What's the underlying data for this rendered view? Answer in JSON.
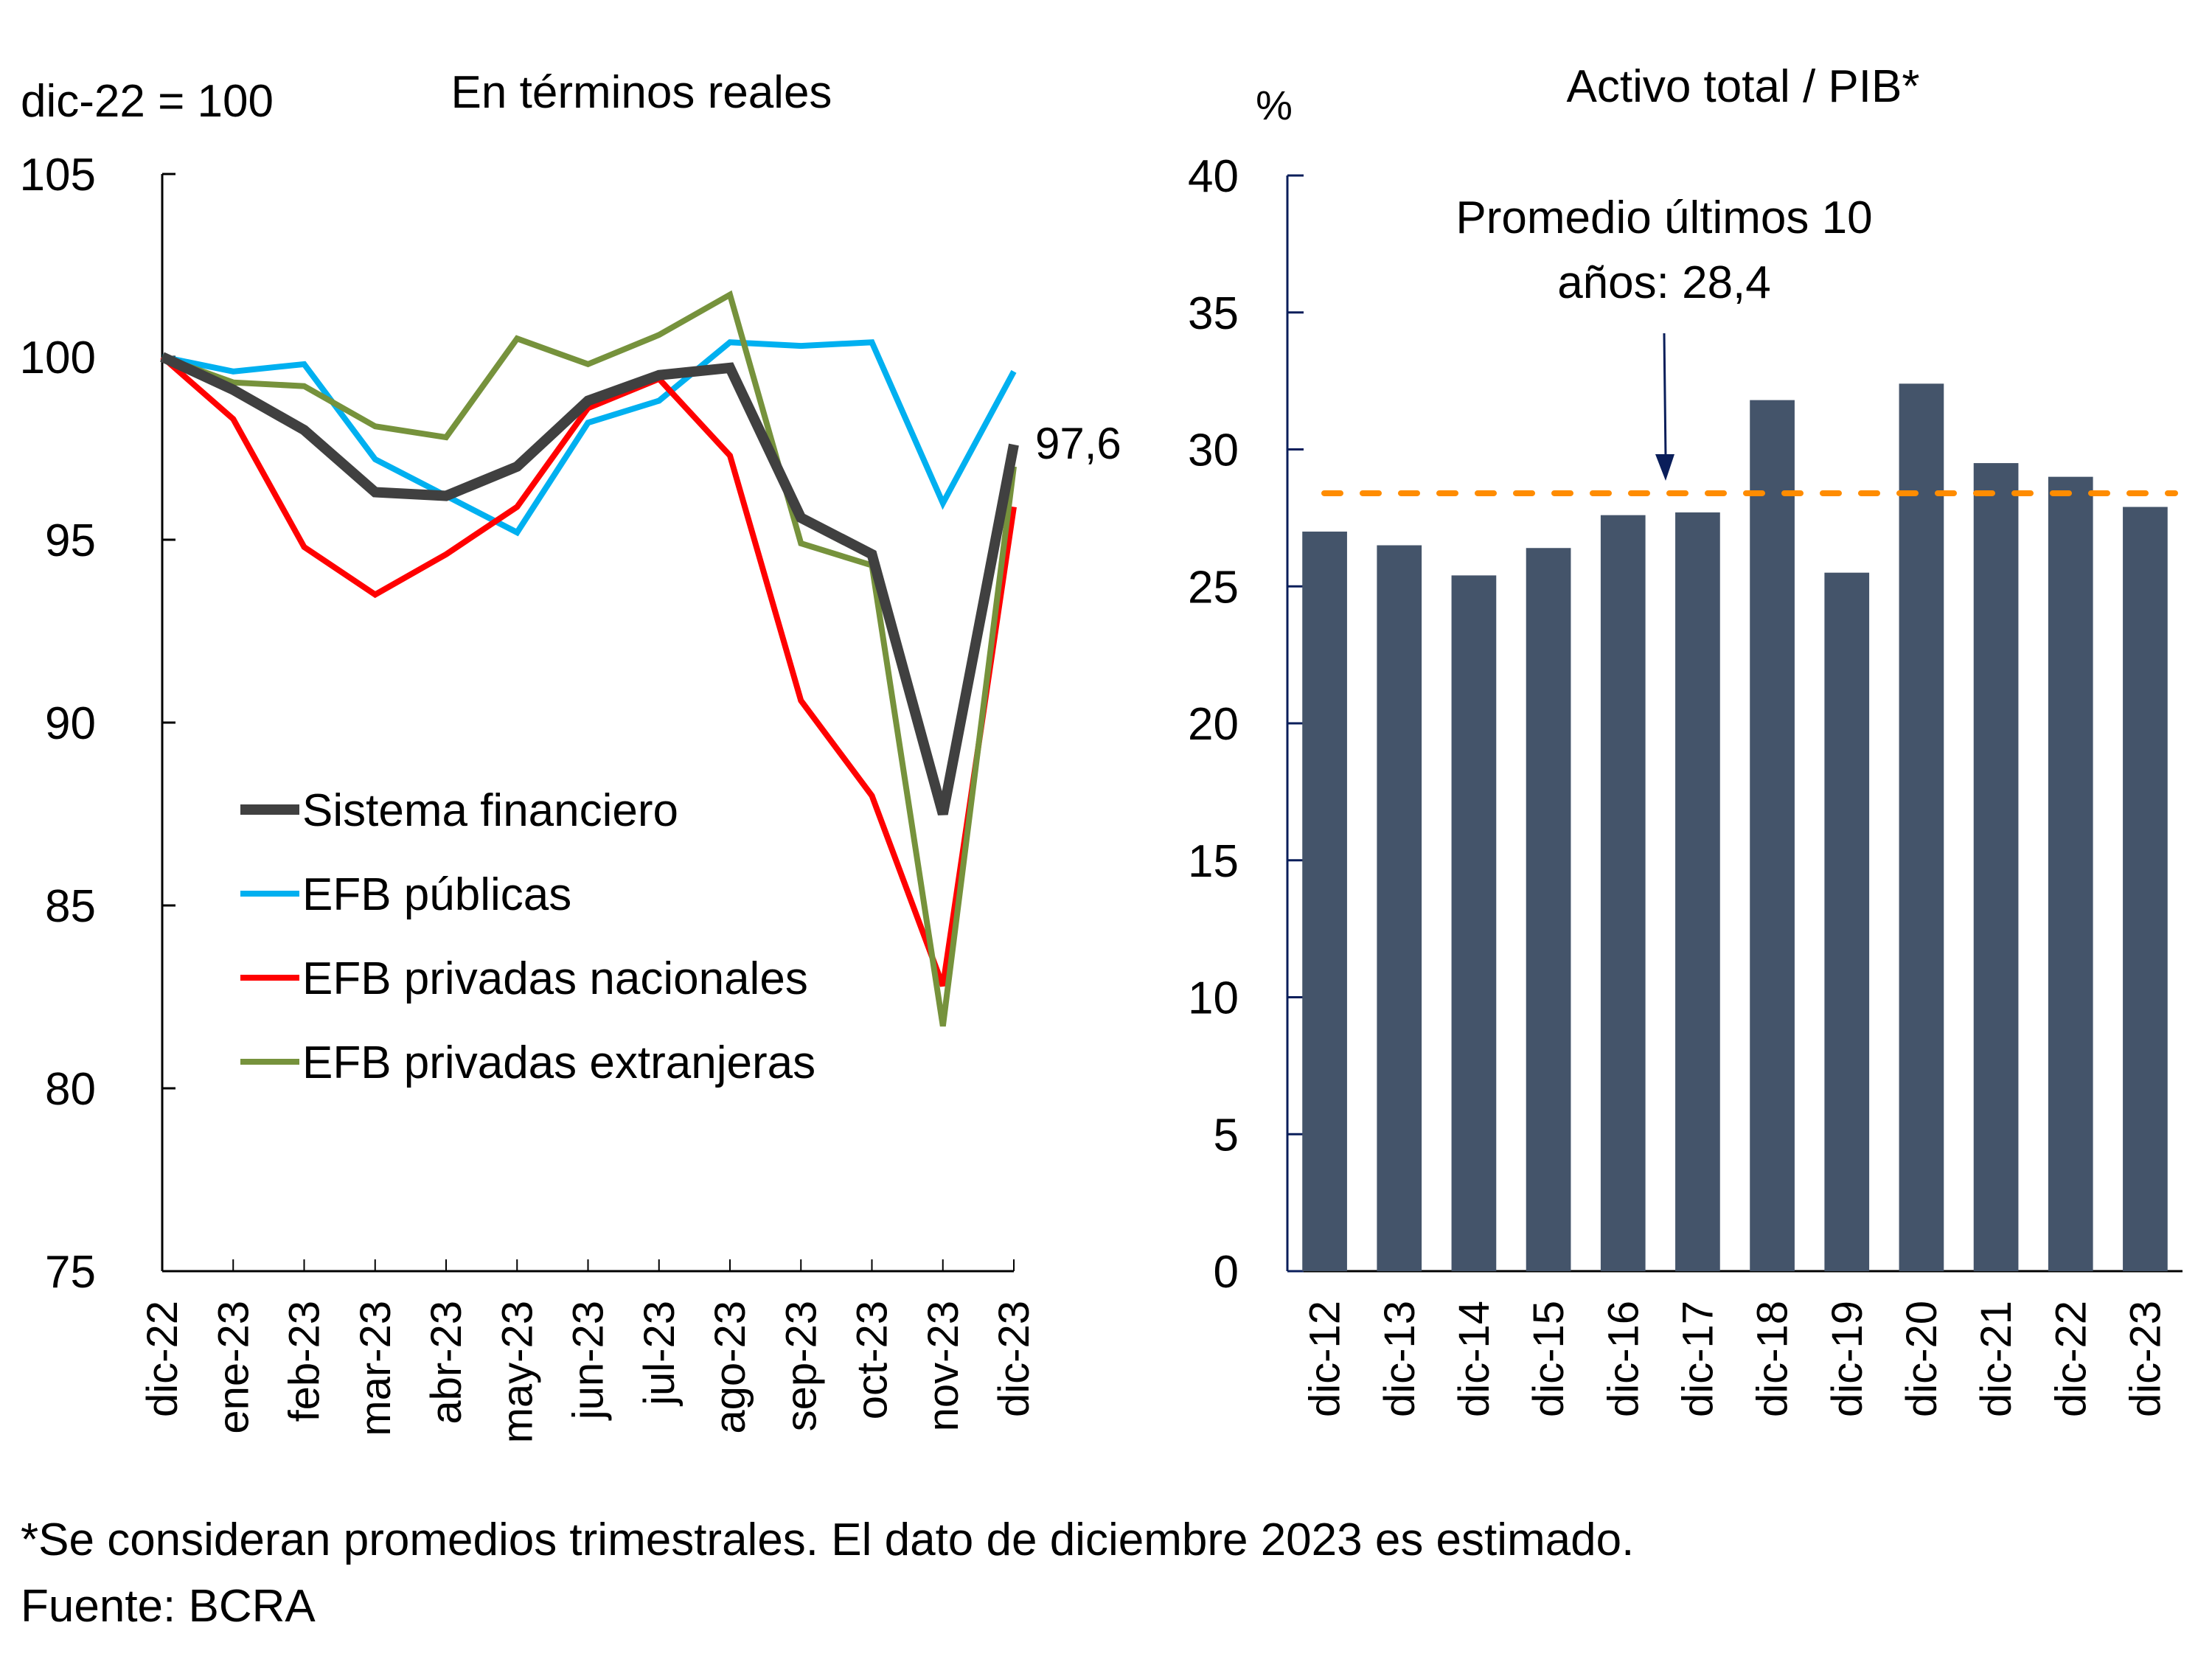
{
  "chart_data": [
    {
      "type": "line",
      "title": "En términos reales",
      "ylabel": "dic-22 = 100",
      "xlabel": "",
      "ylim": [
        75,
        105
      ],
      "yticks": [
        75,
        80,
        85,
        90,
        95,
        100,
        105
      ],
      "grid": false,
      "legend_position": "bottom-left",
      "x": [
        "dic-22",
        "ene-23",
        "feb-23",
        "mar-23",
        "abr-23",
        "may-23",
        "jun-23",
        "jul-23",
        "ago-23",
        "sep-23",
        "oct-23",
        "nov-23",
        "dic-23"
      ],
      "series": [
        {
          "name": "Sistema financiero",
          "color": "#404040",
          "values": [
            100,
            99.1,
            98.0,
            96.3,
            96.2,
            97.0,
            98.8,
            99.5,
            99.7,
            95.6,
            94.6,
            87.5,
            97.6
          ]
        },
        {
          "name": "EFB públicas",
          "color": "#00B0F0",
          "values": [
            100,
            99.6,
            99.8,
            97.2,
            96.2,
            95.2,
            98.2,
            98.8,
            100.4,
            100.3,
            100.4,
            96.0,
            99.6
          ]
        },
        {
          "name": "EFB privadas nacionales",
          "color": "#FF0000",
          "values": [
            100,
            98.3,
            94.8,
            93.5,
            94.6,
            95.9,
            98.6,
            99.4,
            97.3,
            90.6,
            88.0,
            82.8,
            95.9
          ]
        },
        {
          "name": "EFB privadas extranjeras",
          "color": "#76923C",
          "values": [
            100,
            99.3,
            99.2,
            98.1,
            97.8,
            100.5,
            99.8,
            100.6,
            101.7,
            94.9,
            94.3,
            81.7,
            97.0
          ]
        }
      ],
      "annotations": [
        {
          "text": "97,6",
          "series": "Sistema financiero",
          "x": "dic-23"
        }
      ]
    },
    {
      "type": "bar",
      "title": "Activo total / PIB*",
      "ylabel": "%",
      "xlabel": "",
      "ylim": [
        0,
        40
      ],
      "yticks": [
        0,
        5,
        10,
        15,
        20,
        25,
        30,
        35,
        40
      ],
      "grid": false,
      "categories": [
        "dic-12",
        "dic-13",
        "dic-14",
        "dic-15",
        "dic-16",
        "dic-17",
        "dic-18",
        "dic-19",
        "dic-20",
        "dic-21",
        "dic-22",
        "dic-23"
      ],
      "values": [
        27.0,
        26.5,
        25.4,
        26.4,
        27.6,
        27.7,
        31.8,
        25.5,
        32.4,
        29.5,
        29.0,
        27.9
      ],
      "bar_color": "#44546A",
      "reference_line": {
        "value": 28.4,
        "color": "#FF8C00",
        "style": "dashed"
      },
      "annotations": [
        {
          "text_line1": "Promedio últimos 10",
          "text_line2": "años: 28,4",
          "arrow_to": 28.4
        }
      ]
    }
  ],
  "footer": {
    "note": "*Se consideran promedios trimestrales. El dato de diciembre 2023 es estimado.",
    "source": "Fuente: BCRA"
  }
}
